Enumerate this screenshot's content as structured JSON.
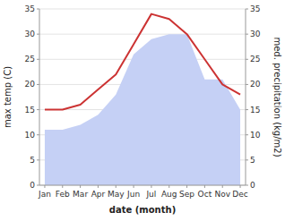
{
  "chart_data": {
    "type": "line",
    "categories": [
      "Jan",
      "Feb",
      "Mar",
      "Apr",
      "May",
      "Jun",
      "Jul",
      "Aug",
      "Sep",
      "Oct",
      "Nov",
      "Dec"
    ],
    "series": [
      {
        "type": "area",
        "color": "#c5d0f5",
        "axis": "y2",
        "values": [
          11,
          11,
          12,
          14,
          18,
          26,
          29,
          30,
          30,
          21,
          21,
          15
        ]
      },
      {
        "type": "line",
        "color": "#cc3333",
        "values": [
          15,
          15,
          16,
          19,
          22,
          28,
          34,
          33,
          30,
          25,
          20,
          18
        ]
      }
    ],
    "xlabel": "date (month)",
    "ylabel": "max temp (C)",
    "y2label": "med. precipitation (kg/m2)",
    "ylim": [
      0,
      35
    ],
    "yticks": [
      0,
      5,
      10,
      15,
      20,
      25,
      30,
      35
    ],
    "y2lim": [
      0,
      35
    ],
    "y2ticks": [
      0,
      5,
      10,
      15,
      20,
      25,
      30,
      35
    ],
    "grid": true
  }
}
